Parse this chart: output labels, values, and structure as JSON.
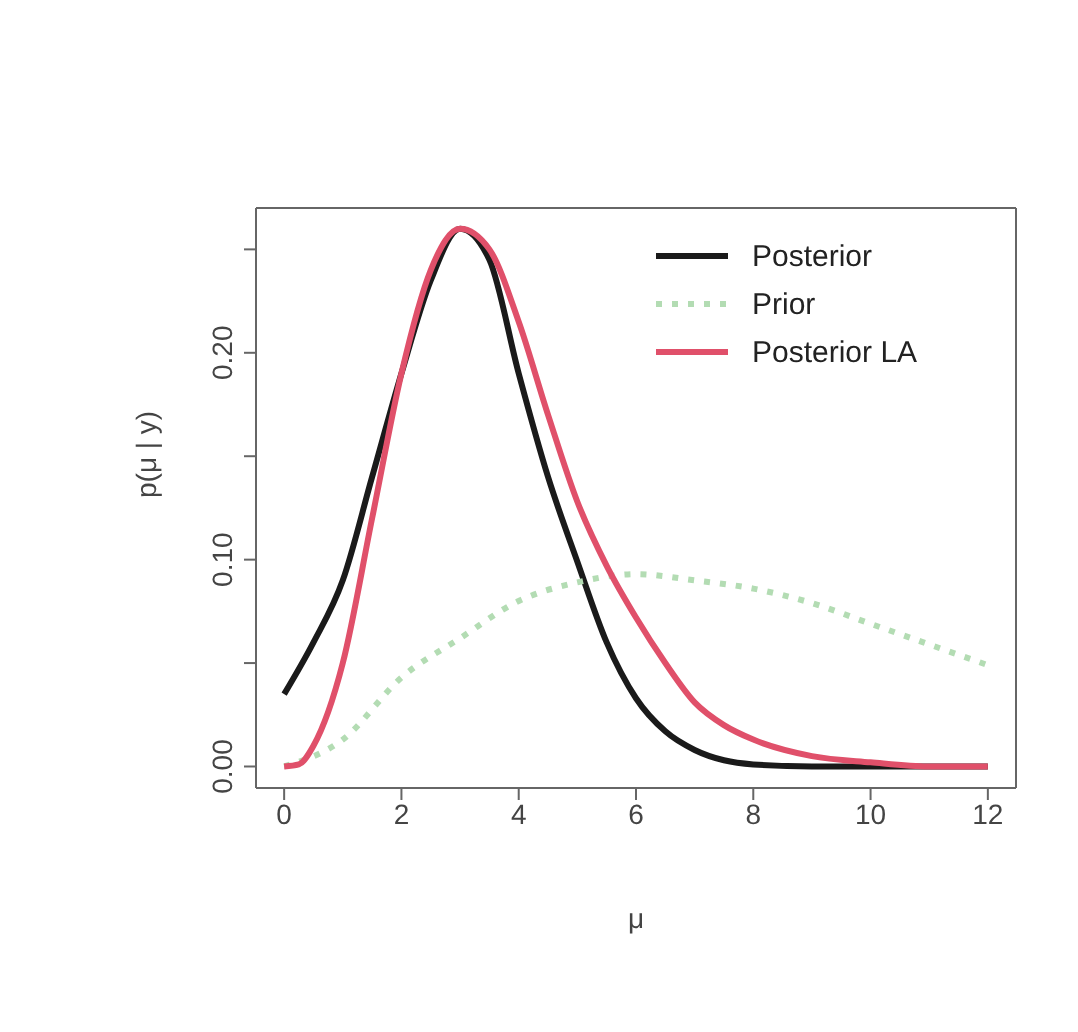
{
  "chart_data": {
    "type": "line",
    "xlabel": "μ",
    "ylabel": "p(μ | y)",
    "xlim": [
      -0.48,
      12.48
    ],
    "ylim": [
      -0.0104,
      0.27
    ],
    "xticks": [
      0,
      2,
      4,
      6,
      8,
      10,
      12
    ],
    "yticks": [
      {
        "value": 0,
        "label": "0.00"
      },
      {
        "value": 0.05,
        "label": null
      },
      {
        "value": 0.1,
        "label": "0.10"
      },
      {
        "value": 0.15,
        "label": null
      },
      {
        "value": 0.2,
        "label": "0.20"
      },
      {
        "value": 0.25,
        "label": null
      }
    ],
    "grid": false,
    "legend": "top right",
    "series": [
      {
        "name": "Posterior",
        "color": "#1a1a1a",
        "line_style": "solid",
        "x": [
          0,
          0.5,
          1,
          1.5,
          2,
          2.5,
          3,
          3.5,
          4,
          4.5,
          5,
          5.5,
          6,
          6.5,
          7,
          7.5,
          8,
          9,
          10,
          11,
          12
        ],
        "values": [
          0.035,
          0.06,
          0.09,
          0.14,
          0.19,
          0.235,
          0.26,
          0.245,
          0.19,
          0.14,
          0.099,
          0.06,
          0.033,
          0.017,
          0.008,
          0.003,
          0.001,
          0,
          0,
          0,
          0
        ]
      },
      {
        "name": "Prior",
        "color": "#b3dcb3",
        "line_style": "dotted",
        "x": [
          0,
          1,
          2,
          3,
          4,
          5,
          6,
          7,
          8,
          9,
          10,
          11,
          12
        ],
        "values": [
          0,
          0.013,
          0.043,
          0.062,
          0.08,
          0.089,
          0.093,
          0.09,
          0.086,
          0.079,
          0.069,
          0.059,
          0.049
        ]
      },
      {
        "name": "Posterior LA",
        "color": "#e0506a",
        "line_style": "solid",
        "x": [
          0,
          0.25,
          0.5,
          1,
          1.5,
          2,
          2.5,
          3,
          3.5,
          4,
          4.5,
          5,
          5.5,
          6,
          6.5,
          7,
          7.5,
          8,
          9,
          10,
          11,
          12
        ],
        "values": [
          0,
          0.001,
          0.01,
          0.05,
          0.12,
          0.19,
          0.24,
          0.26,
          0.25,
          0.215,
          0.17,
          0.128,
          0.097,
          0.072,
          0.05,
          0.031,
          0.02,
          0.013,
          0.005,
          0.002,
          0,
          0
        ]
      }
    ]
  }
}
